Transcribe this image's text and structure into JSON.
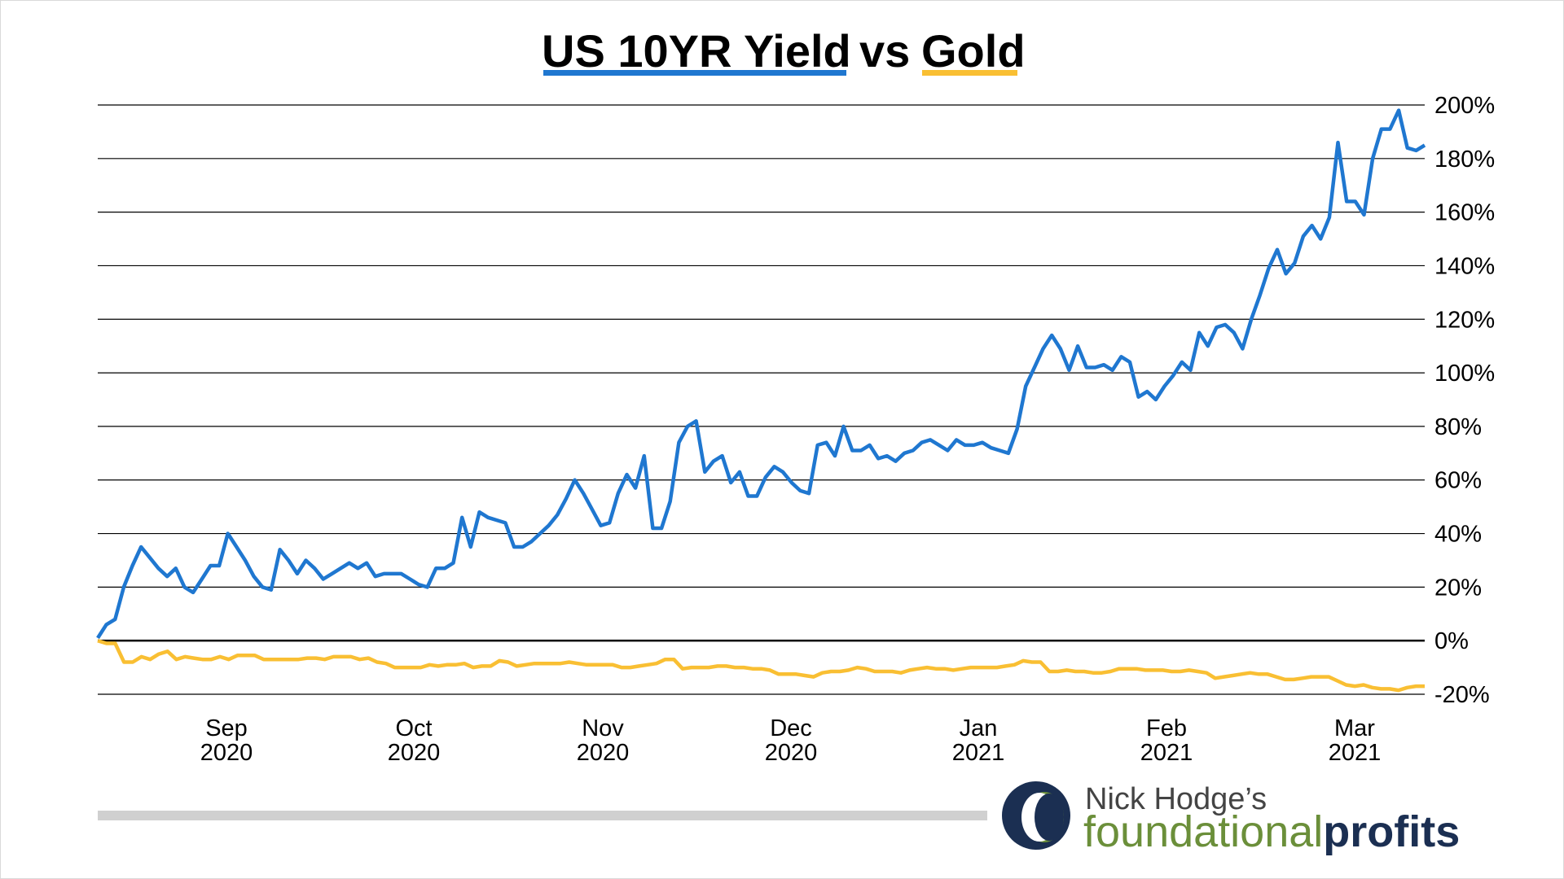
{
  "chart_data": {
    "type": "line",
    "title_parts": [
      "US 10YR Yield",
      "vs",
      "Gold"
    ],
    "ylim": [
      -20,
      200
    ],
    "yticks": [
      "200%",
      "180%",
      "160%",
      "140%",
      "120%",
      "100%",
      "80%",
      "60%",
      "40%",
      "20%",
      "0%",
      "-20%"
    ],
    "ytick_values": [
      200,
      180,
      160,
      140,
      120,
      100,
      80,
      60,
      40,
      20,
      0,
      -20
    ],
    "xticks": [
      {
        "month": "Sep",
        "year": "2020"
      },
      {
        "month": "Oct",
        "year": "2020"
      },
      {
        "month": "Nov",
        "year": "2020"
      },
      {
        "month": "Dec",
        "year": "2020"
      },
      {
        "month": "Jan",
        "year": "2021"
      },
      {
        "month": "Feb",
        "year": "2021"
      },
      {
        "month": "Mar",
        "year": "2021"
      }
    ],
    "grid": true,
    "series": [
      {
        "name": "US 10YR Yield",
        "color": "#1f77d0",
        "values": [
          1,
          6,
          8,
          20,
          28,
          35,
          31,
          27,
          24,
          27,
          20,
          18,
          23,
          28,
          28,
          40,
          35,
          30,
          24,
          20,
          19,
          34,
          30,
          25,
          30,
          27,
          23,
          25,
          27,
          29,
          27,
          29,
          24,
          25,
          25,
          25,
          23,
          21,
          20,
          27,
          27,
          29,
          46,
          35,
          48,
          46,
          45,
          44,
          35,
          35,
          37,
          40,
          43,
          47,
          53,
          60,
          55,
          49,
          43,
          44,
          55,
          62,
          57,
          69,
          42,
          42,
          52,
          74,
          80,
          82,
          63,
          67,
          69,
          59,
          63,
          54,
          54,
          61,
          65,
          63,
          59,
          56,
          55,
          73,
          74,
          69,
          80,
          71,
          71,
          73,
          68,
          69,
          67,
          70,
          71,
          74,
          75,
          73,
          71,
          75,
          73,
          73,
          74,
          72,
          71,
          70,
          79,
          95,
          102,
          109,
          114,
          109,
          101,
          110,
          102,
          102,
          103,
          101,
          106,
          104,
          91,
          93,
          90,
          95,
          99,
          104,
          101,
          115,
          110,
          117,
          118,
          115,
          109,
          120,
          129,
          139,
          146,
          137,
          141,
          151,
          155,
          150,
          158,
          186,
          164,
          164,
          159,
          180,
          191,
          191,
          198,
          184,
          183,
          185
        ]
      },
      {
        "name": "Gold",
        "color": "#f9bf33",
        "values": [
          0,
          -1,
          -1,
          -8,
          -8,
          -6,
          -7,
          -5,
          -4,
          -7,
          -6,
          -6.5,
          -7,
          -7,
          -6,
          -7,
          -5.5,
          -5.5,
          -5.5,
          -7,
          -7,
          -7,
          -7,
          -7,
          -6.5,
          -6.5,
          -7,
          -6,
          -6,
          -6,
          -7,
          -6.5,
          -8,
          -8.5,
          -10,
          -10,
          -10,
          -10,
          -9,
          -9.5,
          -9,
          -9,
          -8.5,
          -10,
          -9.5,
          -9.5,
          -7.5,
          -8,
          -9.5,
          -9,
          -8.5,
          -8.5,
          -8.5,
          -8.5,
          -8,
          -8.5,
          -9,
          -9,
          -9,
          -9,
          -10,
          -10,
          -9.5,
          -9,
          -8.5,
          -7,
          -7,
          -10.5,
          -10,
          -10,
          -10,
          -9.5,
          -9.5,
          -10,
          -10,
          -10.5,
          -10.5,
          -11,
          -12.5,
          -12.5,
          -12.5,
          -13,
          -13.5,
          -12,
          -11.5,
          -11.5,
          -11,
          -10,
          -10.5,
          -11.5,
          -11.5,
          -11.5,
          -12,
          -11,
          -10.5,
          -10,
          -10.5,
          -10.5,
          -11,
          -10.5,
          -10,
          -10,
          -10,
          -10,
          -9.5,
          -9,
          -7.5,
          -8,
          -8,
          -11.5,
          -11.5,
          -11,
          -11.5,
          -11.5,
          -12,
          -12,
          -11.5,
          -10.5,
          -10.5,
          -10.5,
          -11,
          -11,
          -11,
          -11.5,
          -11.5,
          -11,
          -11.5,
          -12,
          -14,
          -13.5,
          -13,
          -12.5,
          -12,
          -12.5,
          -12.5,
          -13.5,
          -14.5,
          -14.5,
          -14,
          -13.5,
          -13.5,
          -13.5,
          -15,
          -16.5,
          -17,
          -16.5,
          -17.5,
          -18,
          -18,
          -18.5,
          -17.5,
          -17,
          -17
        ]
      }
    ]
  },
  "logo": {
    "line1": "Nick Hodge’s",
    "line2a": "foundational",
    "line2b": "profits"
  },
  "colors": {
    "yield": "#1f77d0",
    "gold": "#f9bf33",
    "logo_navy": "#1b2f52",
    "logo_green": "#6b8f3a",
    "footer_bar": "#d0d0d0"
  }
}
